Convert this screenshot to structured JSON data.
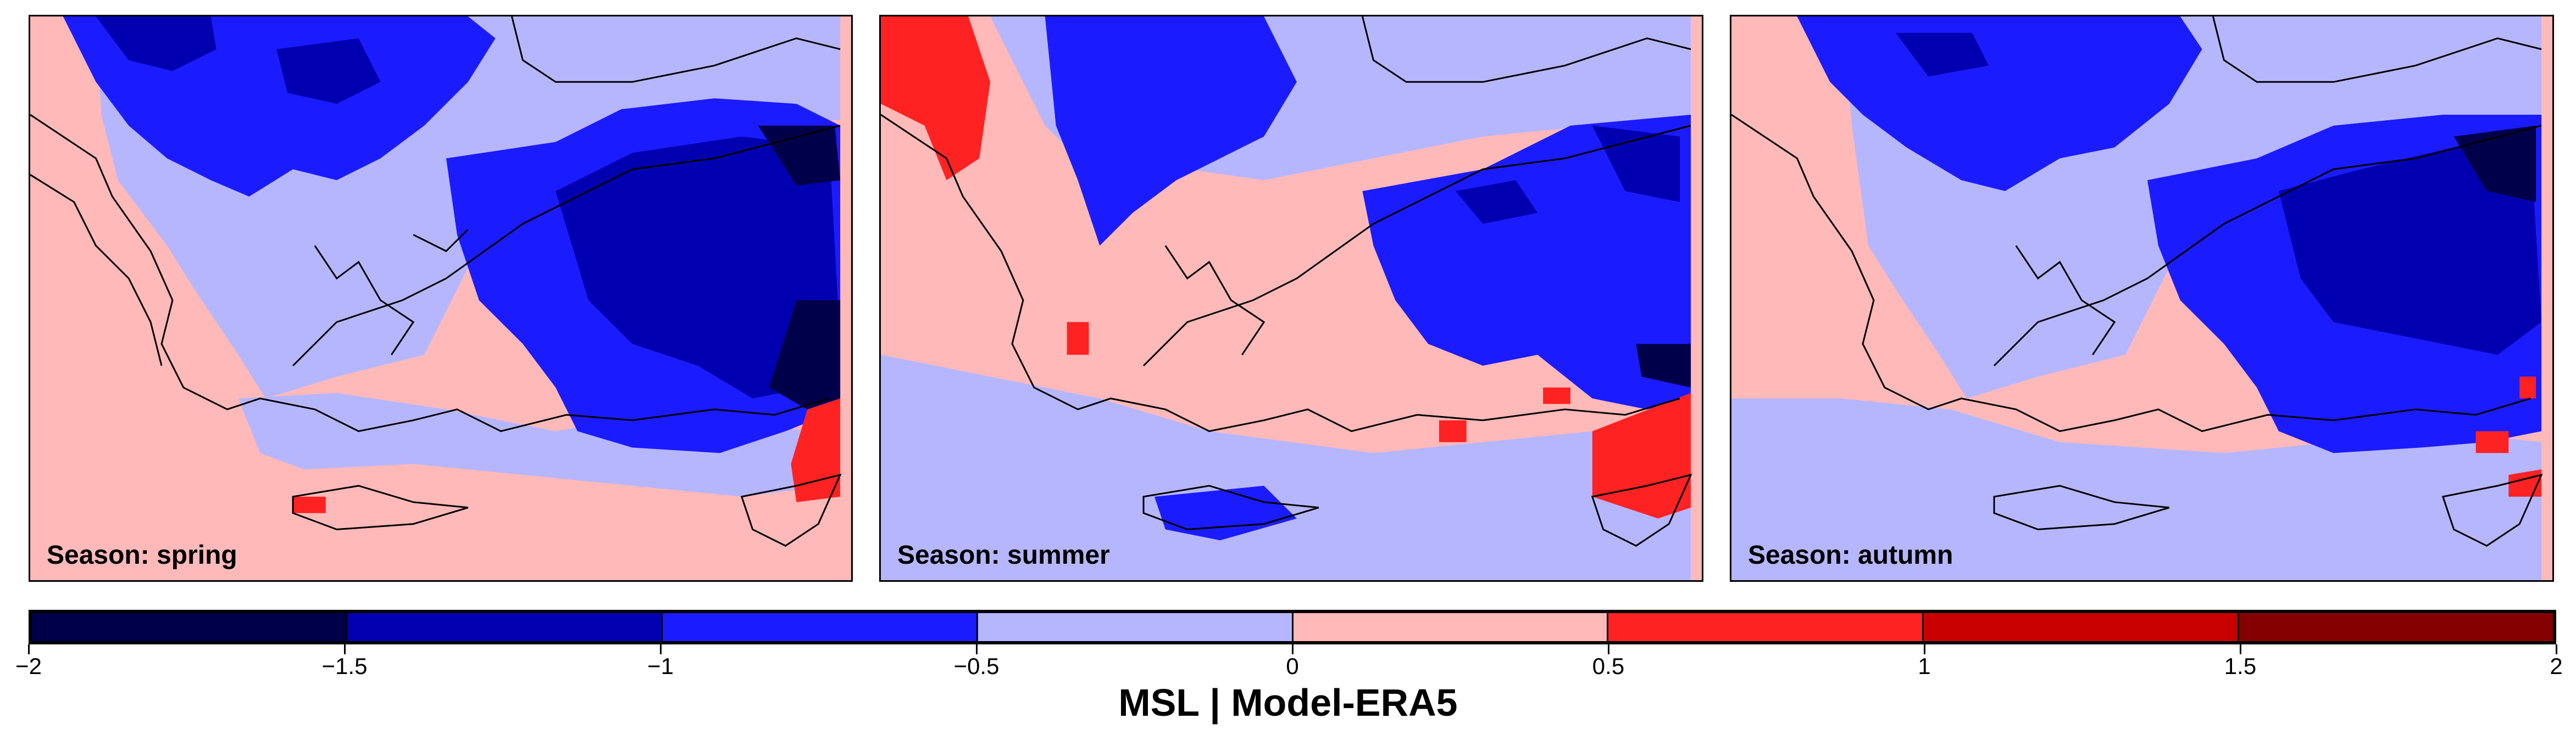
{
  "panels": [
    {
      "label": "Season: spring"
    },
    {
      "label": "Season: summer"
    },
    {
      "label": "Season: autumn"
    }
  ],
  "colorbar": {
    "colors": [
      "#00004a",
      "#0000b0",
      "#1b1bff",
      "#b6b6ff",
      "#ffb9b9",
      "#ff2222",
      "#c80000",
      "#850000"
    ],
    "ticks": [
      "−2",
      "−1.5",
      "−1",
      "−0.5",
      "0",
      "0.5",
      "1",
      "1.5",
      "2"
    ],
    "title": "MSL | Model-ERA5"
  },
  "map_style": {
    "coastline_color": "#000000",
    "positive_fill": "#ffb9b9",
    "strong_positive_fill": "#ff2222",
    "neutral_negative_fill": "#b6b6ff",
    "negative_fill": "#1b1bff",
    "strong_negative_fill": "#0000b0",
    "very_strong_negative_fill": "#00004a"
  }
}
